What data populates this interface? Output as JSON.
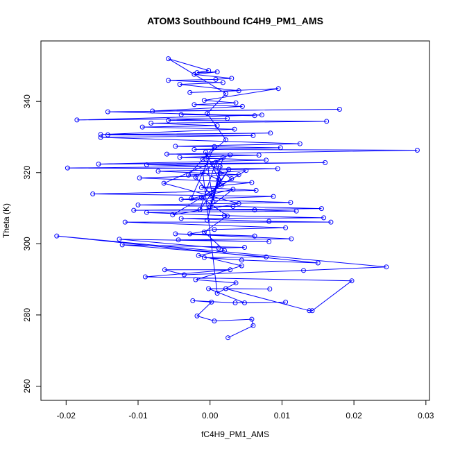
{
  "chart_data": {
    "type": "line",
    "title": "ATOM3 Southbound fC4H9_PM1_AMS",
    "xlabel": "fC4H9_PM1_AMS",
    "ylabel": "Theta (K)",
    "xlim": [
      -0.0235,
      0.0305
    ],
    "ylim": [
      256,
      357
    ],
    "xticks": [
      -0.02,
      -0.01,
      0.0,
      0.01,
      0.02,
      0.03
    ],
    "xtick_labels": [
      "-0.02",
      "-0.01",
      "0.00",
      "0.01",
      "0.02",
      "0.03"
    ],
    "yticks": [
      260,
      280,
      300,
      320,
      340
    ],
    "ytick_labels": [
      "260",
      "280",
      "300",
      "320",
      "340"
    ],
    "grid": false,
    "series": [
      {
        "color": "#0000ff",
        "marker": "open-circle",
        "points": [
          [
            0.0025,
            273.6
          ],
          [
            0.006,
            277.0
          ],
          [
            0.0058,
            278.8
          ],
          [
            0.0006,
            278.3
          ],
          [
            -0.0018,
            279.7
          ],
          [
            0.0002,
            283.6
          ],
          [
            -0.0024,
            284.0
          ],
          [
            0.0035,
            283.4
          ],
          [
            0.0105,
            283.6
          ],
          [
            0.0048,
            283.4
          ],
          [
            -0.0002,
            287.4
          ],
          [
            0.0083,
            287.3
          ],
          [
            0.0022,
            287.4
          ],
          [
            0.0138,
            281.2
          ],
          [
            0.0142,
            281.2
          ],
          [
            0.0197,
            289.6
          ],
          [
            -0.009,
            290.7
          ],
          [
            0.0028,
            292.7
          ],
          [
            -0.0063,
            292.7
          ],
          [
            -0.0036,
            291.3
          ],
          [
            0.013,
            292.5
          ],
          [
            0.0245,
            293.5
          ],
          [
            -0.0213,
            302.2
          ],
          [
            0.015,
            294.6
          ],
          [
            0.0044,
            295.4
          ],
          [
            -0.0008,
            296.1
          ],
          [
            0.0078,
            296.3
          ],
          [
            -0.0122,
            299.7
          ],
          [
            0.0048,
            299.0
          ],
          [
            0.0012,
            298.8
          ],
          [
            -0.0126,
            301.3
          ],
          [
            0.0082,
            300.6
          ],
          [
            -0.0044,
            301.1
          ],
          [
            0.0113,
            301.4
          ],
          [
            -0.0048,
            302.8
          ],
          [
            0.0062,
            302.2
          ],
          [
            -0.0028,
            302.8
          ],
          [
            0.0006,
            304.0
          ],
          [
            0.0105,
            304.5
          ],
          [
            -0.0118,
            306.1
          ],
          [
            0.0168,
            306.1
          ],
          [
            0.0082,
            306.3
          ],
          [
            -0.004,
            307.1
          ],
          [
            0.0158,
            307.3
          ],
          [
            0.002,
            307.9
          ],
          [
            -0.0088,
            308.8
          ],
          [
            0.012,
            309.2
          ],
          [
            0.0062,
            309.5
          ],
          [
            -0.0106,
            309.4
          ],
          [
            0.0155,
            309.9
          ],
          [
            0.0032,
            310.5
          ],
          [
            -0.01,
            310.9
          ],
          [
            0.0112,
            311.6
          ],
          [
            -0.004,
            312.5
          ],
          [
            0.0088,
            313.3
          ],
          [
            -0.0163,
            314.0
          ],
          [
            0.0064,
            315.0
          ],
          [
            -0.0012,
            315.8
          ],
          [
            0.0058,
            317.2
          ],
          [
            -0.0098,
            318.5
          ],
          [
            0.004,
            319.4
          ],
          [
            -0.0072,
            320.4
          ],
          [
            0.0094,
            321.1
          ],
          [
            -0.0198,
            321.3
          ],
          [
            0.0014,
            321.7
          ],
          [
            -0.0088,
            322.2
          ],
          [
            0.016,
            322.8
          ],
          [
            -0.0155,
            322.4
          ],
          [
            0.0078,
            323.5
          ],
          [
            -0.0042,
            324.3
          ],
          [
            0.0068,
            324.9
          ],
          [
            -0.006,
            325.2
          ],
          [
            0.0288,
            326.3
          ],
          [
            -0.0022,
            326.5
          ],
          [
            0.0098,
            327.0
          ],
          [
            -0.0048,
            327.4
          ],
          [
            0.0125,
            328.1
          ],
          [
            -0.0152,
            329.9
          ],
          [
            0.006,
            330.4
          ],
          [
            -0.0142,
            330.6
          ],
          [
            0.0084,
            331.1
          ],
          [
            -0.0152,
            330.7
          ],
          [
            0.0034,
            332.2
          ],
          [
            -0.0094,
            332.8
          ],
          [
            0.001,
            333.2
          ],
          [
            -0.0082,
            333.9
          ],
          [
            0.0162,
            334.4
          ],
          [
            -0.0058,
            334.7
          ],
          [
            0.0024,
            335.2
          ],
          [
            -0.0185,
            334.8
          ],
          [
            0.0072,
            336.2
          ],
          [
            -0.004,
            336.3
          ],
          [
            0.0062,
            336.0
          ],
          [
            -0.0142,
            337.1
          ],
          [
            0.018,
            337.8
          ],
          [
            -0.008,
            337.3
          ],
          [
            0.0045,
            338.6
          ],
          [
            -0.0022,
            339.1
          ],
          [
            0.0036,
            339.6
          ],
          [
            -0.0008,
            340.3
          ],
          [
            0.0095,
            343.6
          ],
          [
            -0.0028,
            342.5
          ],
          [
            0.004,
            343.0
          ],
          [
            -0.0042,
            344.8
          ],
          [
            0.0018,
            345.3
          ],
          [
            -0.0058,
            345.9
          ],
          [
            0.0008,
            346.2
          ],
          [
            0.003,
            346.5
          ],
          [
            -0.0022,
            347.6
          ],
          [
            0.001,
            348.3
          ],
          [
            -0.0018,
            348.1
          ],
          [
            -0.0002,
            348.7
          ],
          [
            -0.0058,
            352.0
          ],
          [
            0.0022,
            342.2
          ],
          [
            -0.0004,
            336.6
          ],
          [
            0.0022,
            329.2
          ],
          [
            -0.001,
            323.7
          ],
          [
            0.003,
            318.3
          ],
          [
            -0.0012,
            313.1
          ],
          [
            0.0024,
            307.8
          ],
          [
            -0.0008,
            303.3
          ],
          [
            0.002,
            298.1
          ],
          [
            -0.0016,
            296.7
          ],
          [
            0.0044,
            293.8
          ],
          [
            -0.002,
            289.9
          ],
          [
            0.0036,
            289.0
          ],
          [
            0.001,
            286.1
          ],
          [
            -0.001,
            320.1
          ],
          [
            0.0012,
            318.0
          ],
          [
            0.0004,
            311.9
          ],
          [
            -0.0006,
            325.8
          ],
          [
            0.0016,
            316.5
          ],
          [
            0.0008,
            322.9
          ],
          [
            -0.0014,
            309.6
          ],
          [
            0.0026,
            320.9
          ],
          [
            0.0002,
            313.6
          ],
          [
            -0.002,
            318.7
          ],
          [
            0.0018,
            324.2
          ],
          [
            -0.0004,
            306.6
          ],
          [
            0.0014,
            319.7
          ],
          [
            0.0,
            310.4
          ],
          [
            0.0032,
            315.3
          ],
          [
            -0.0026,
            312.7
          ],
          [
            0.0006,
            327.3
          ],
          [
            -0.003,
            319.3
          ],
          [
            0.005,
            320.6
          ],
          [
            -0.0052,
            308.1
          ],
          [
            0.004,
            311.3
          ],
          [
            -0.0064,
            317.0
          ],
          [
            0.0028,
            325.0
          ]
        ]
      }
    ]
  }
}
